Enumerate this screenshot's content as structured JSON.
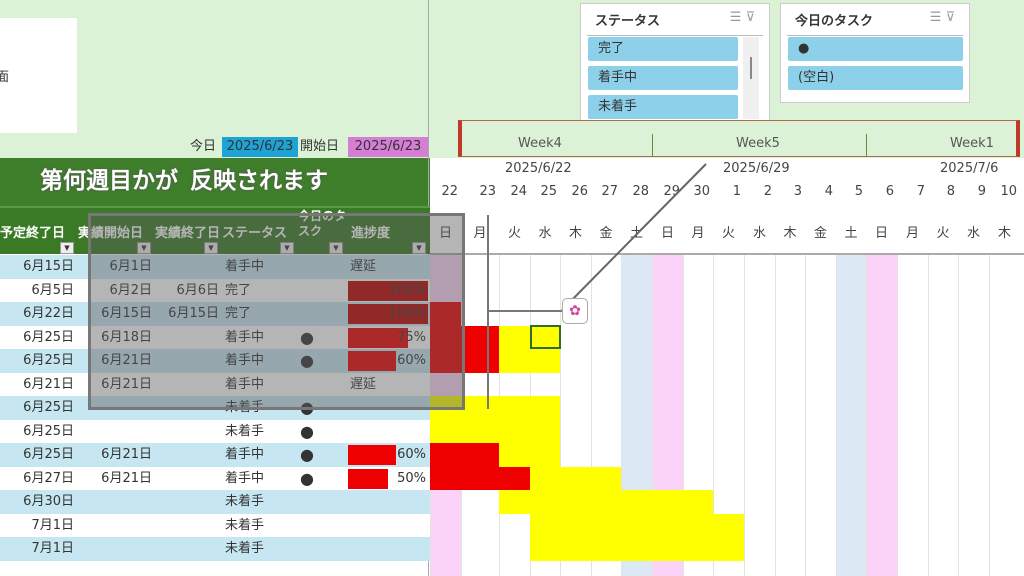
{
  "header": {
    "partial_text": "面",
    "today_label": "今日",
    "today_value": "2025/6/23",
    "start_label": "開始日",
    "start_value": "2025/6/23"
  },
  "colors": {
    "today": "#1ea3d6",
    "start": "#d67ed6",
    "header_green": "#3a7a26",
    "row_alt": "#c6e7f1",
    "done_bar": "#c00000",
    "progress_bar": "#ee0000",
    "plan_bar": "#ffff00",
    "saturday": "#dce9f4",
    "sunday": "#fbd3f8"
  },
  "slicers": [
    {
      "title": "ステータス",
      "items": [
        "完了",
        "着手中",
        "未着手"
      ]
    },
    {
      "title": "今日のタスク",
      "items": [
        "●",
        "(空白)"
      ]
    }
  ],
  "timeline": {
    "weeks": [
      "Week4",
      "Week5",
      "Week1"
    ],
    "week_dates": [
      "2025/6/22",
      "2025/6/29",
      "2025/7/6"
    ],
    "days": [
      "22",
      "23",
      "24",
      "25",
      "26",
      "27",
      "28",
      "29",
      "30",
      "1",
      "2",
      "3",
      "4",
      "5",
      "6",
      "7",
      "8",
      "9",
      "10"
    ],
    "weekdays": [
      "日",
      "月",
      "火",
      "水",
      "木",
      "金",
      "土",
      "日",
      "月",
      "火",
      "水",
      "木",
      "金",
      "土",
      "日",
      "月",
      "火",
      "水",
      "木"
    ]
  },
  "columns": [
    "予定終了日",
    "実績開始日",
    "実績終了日",
    "ステータス",
    "今日のタスク",
    "進捗度"
  ],
  "rows": [
    {
      "plan_end": "6月15日",
      "act_start": "6月1日",
      "act_end": "",
      "status": "着手中",
      "today": "",
      "progress": "遅延",
      "pct": 0,
      "done": 0,
      "bar": null
    },
    {
      "plan_end": "6月5日",
      "act_start": "6月2日",
      "act_end": "6月6日",
      "status": "完了",
      "today": "",
      "progress": "100%",
      "pct": 100,
      "done": 0,
      "bar": null
    },
    {
      "plan_end": "6月22日",
      "act_start": "6月15日",
      "act_end": "6月15日",
      "status": "完了",
      "today": "",
      "progress": "100%",
      "pct": 100,
      "done": 1,
      "bar": null
    },
    {
      "plan_end": "6月25日",
      "act_start": "6月18日",
      "act_end": "",
      "status": "着手中",
      "today": "●",
      "progress": "75%",
      "pct": 75,
      "done": 2,
      "bar": [
        2,
        4
      ]
    },
    {
      "plan_end": "6月25日",
      "act_start": "6月21日",
      "act_end": "",
      "status": "着手中",
      "today": "●",
      "progress": "60%",
      "pct": 60,
      "done": 2,
      "bar": [
        2,
        4
      ]
    },
    {
      "plan_end": "6月21日",
      "act_start": "6月21日",
      "act_end": "",
      "status": "着手中",
      "today": "",
      "progress": "遅延",
      "pct": 0,
      "done": 0,
      "bar": null
    },
    {
      "plan_end": "6月25日",
      "act_start": "",
      "act_end": "",
      "status": "未着手",
      "today": "●",
      "progress": "",
      "pct": 0,
      "done": 0,
      "bar": [
        0,
        4
      ]
    },
    {
      "plan_end": "6月25日",
      "act_start": "",
      "act_end": "",
      "status": "未着手",
      "today": "●",
      "progress": "",
      "pct": 0,
      "done": 0,
      "bar": [
        0,
        4
      ]
    },
    {
      "plan_end": "6月25日",
      "act_start": "6月21日",
      "act_end": "",
      "status": "着手中",
      "today": "●",
      "progress": "60%",
      "pct": 60,
      "done": 2,
      "bar": [
        2,
        4
      ]
    },
    {
      "plan_end": "6月27日",
      "act_start": "6月21日",
      "act_end": "",
      "status": "着手中",
      "today": "●",
      "progress": "50%",
      "pct": 50,
      "done": 3,
      "bar": [
        3,
        6
      ]
    },
    {
      "plan_end": "6月30日",
      "act_start": "",
      "act_end": "",
      "status": "未着手",
      "today": "",
      "progress": "",
      "pct": 0,
      "done": 0,
      "bar": [
        2,
        9
      ]
    },
    {
      "plan_end": "7月1日",
      "act_start": "",
      "act_end": "",
      "status": "未着手",
      "today": "",
      "progress": "",
      "pct": 0,
      "done": 0,
      "bar": [
        3,
        10
      ]
    },
    {
      "plan_end": "7月1日",
      "act_start": "",
      "act_end": "",
      "status": "未着手",
      "today": "",
      "progress": "",
      "pct": 0,
      "done": 0,
      "bar": [
        3,
        10
      ]
    }
  ],
  "annotation": {
    "line1": "第何週目かが",
    "line2": "反映されます"
  }
}
